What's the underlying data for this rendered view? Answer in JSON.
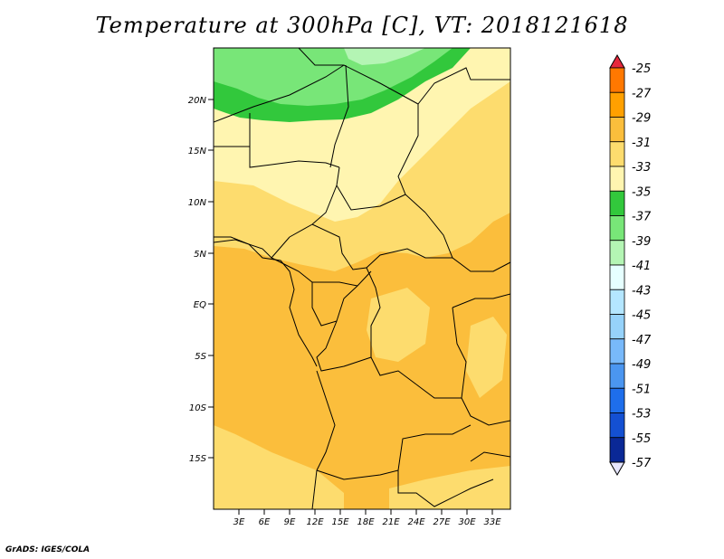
{
  "title": "Temperature at 300hPa [C], VT: 2018121618",
  "credit": "GrADS: IGES/COLA",
  "map": {
    "lat_labels": [
      "20N",
      "15N",
      "10N",
      "5N",
      "EQ",
      "5S",
      "10S",
      "15S"
    ],
    "lon_labels": [
      "3E",
      "6E",
      "9E",
      "12E",
      "15E",
      "18E",
      "21E",
      "24E",
      "27E",
      "30E",
      "33E"
    ]
  },
  "colorbar": {
    "labels": [
      "-25",
      "-27",
      "-29",
      "-31",
      "-33",
      "-35",
      "-37",
      "-39",
      "-41",
      "-43",
      "-45",
      "-47",
      "-49",
      "-51",
      "-53",
      "-55",
      "-57"
    ],
    "colors": [
      "#ff4a00",
      "#ff7800",
      "#ffa000",
      "#fbbe3c",
      "#fddc6e",
      "#fff5b0",
      "#32c83c",
      "#78e678",
      "#b4f5b4",
      "#e6ffff",
      "#b4e6ff",
      "#96d2fa",
      "#78b9fa",
      "#4b96f0",
      "#1e6eeb",
      "#1450d2",
      "#0a2896",
      "#000080"
    ],
    "top_arrow_color": "#e6283c",
    "bottom_arrow_color": "#e6e6ff"
  },
  "chart_data": {
    "type": "heatmap",
    "variable": "Temperature at 300hPa",
    "units": "C",
    "valid_time": "2018121618",
    "lon_range_deg": [
      0,
      35
    ],
    "lat_range_deg": [
      -20,
      24
    ],
    "contour_levels": [
      -57,
      -55,
      -53,
      -51,
      -49,
      -47,
      -45,
      -43,
      -41,
      -39,
      -37,
      -35,
      -33,
      -31,
      -29,
      -27,
      -25
    ]
  }
}
